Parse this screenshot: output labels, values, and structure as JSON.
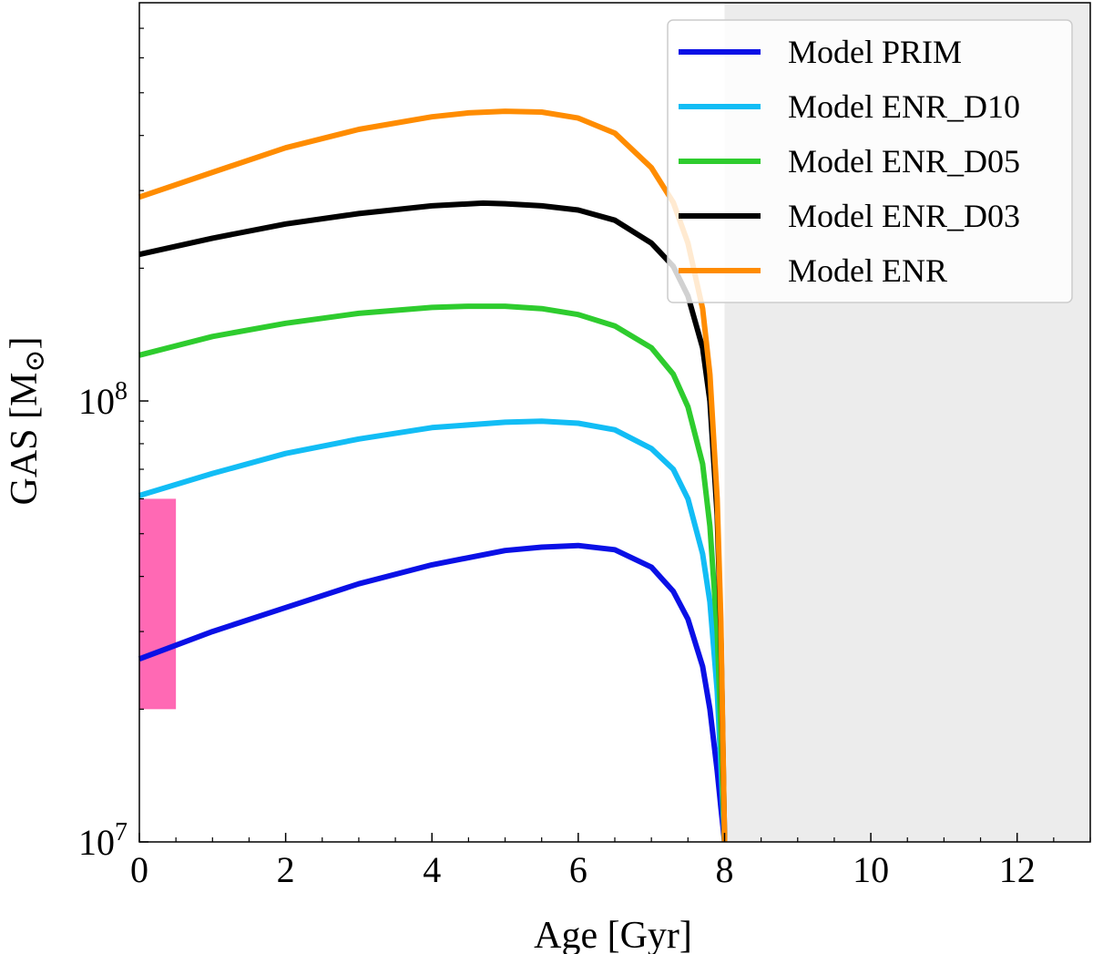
{
  "chart_data": {
    "type": "line",
    "title": "",
    "xlabel": "Age [Gyr]",
    "ylabel": "GAS [M",
    "ylabel_sub": "⊙",
    "ylabel_close": "]",
    "xlim": [
      0,
      13
    ],
    "ylim": [
      10000000,
      800000000
    ],
    "yscale": "log",
    "x_ticks": [
      0,
      2,
      4,
      6,
      8,
      10,
      12
    ],
    "x_tick_labels": [
      "0",
      "2",
      "4",
      "6",
      "8",
      "10",
      "12"
    ],
    "y_tick_labels": [
      {
        "value": 10000000,
        "base": "10",
        "exp": "7"
      },
      {
        "value": 100000000,
        "base": "10",
        "exp": "8"
      }
    ],
    "shaded_region": {
      "x_start": 8,
      "x_end": 13,
      "color": "#ececec"
    },
    "observed_box": {
      "x_start": 0,
      "x_end": 0.5,
      "y_low": 20000000,
      "y_high": 60000000,
      "color": "#ff69b4"
    },
    "legend_position": "upper right",
    "series": [
      {
        "name": "Model PRIM",
        "color": "#0a10e6",
        "x": [
          0,
          1,
          2,
          3,
          4,
          5,
          5.5,
          6,
          6.5,
          7,
          7.3,
          7.5,
          7.7,
          7.8,
          7.9,
          7.95,
          8.0
        ],
        "y": [
          26000000,
          30000000,
          34000000,
          38500000,
          42500000,
          45800000,
          46600000,
          47000000,
          46000000,
          42000000,
          37000000,
          32000000,
          25000000,
          20000000,
          14500000,
          12000000,
          10000000
        ]
      },
      {
        "name": "Model ENR_D10",
        "color": "#12bdf5",
        "x": [
          0,
          1,
          2,
          3,
          4,
          5,
          5.5,
          6,
          6.5,
          7,
          7.3,
          7.5,
          7.7,
          7.8,
          7.9,
          7.95,
          8.0
        ],
        "y": [
          61000000,
          68500000,
          76000000,
          82000000,
          87000000,
          89500000,
          90000000,
          89000000,
          86000000,
          78000000,
          70000000,
          60000000,
          45000000,
          35000000,
          22000000,
          15000000,
          10000000
        ]
      },
      {
        "name": "Model ENR_D05",
        "color": "#2ecc2e",
        "x": [
          0,
          1,
          2,
          3,
          4,
          4.5,
          5,
          5.5,
          6,
          6.5,
          7,
          7.3,
          7.5,
          7.7,
          7.8,
          7.9,
          7.95,
          8.0
        ],
        "y": [
          127000000,
          140000000,
          150000000,
          158000000,
          163000000,
          164000000,
          164000000,
          162000000,
          157000000,
          148000000,
          132000000,
          115000000,
          97000000,
          72000000,
          52000000,
          30000000,
          18000000,
          10000000
        ]
      },
      {
        "name": "Model ENR_D03",
        "color": "#000000",
        "x": [
          0,
          1,
          2,
          3,
          4,
          4.7,
          5,
          5.5,
          6,
          6.5,
          7,
          7.3,
          7.5,
          7.7,
          7.8,
          7.9,
          7.95,
          8.0
        ],
        "y": [
          215000000,
          234000000,
          252000000,
          266000000,
          277000000,
          281000000,
          280000000,
          277000000,
          271000000,
          257000000,
          228000000,
          202000000,
          173000000,
          132000000,
          100000000,
          55000000,
          30000000,
          10000000
        ]
      },
      {
        "name": "Model ENR",
        "color": "#ff8c00",
        "x": [
          0,
          1,
          2,
          3,
          4,
          4.5,
          5,
          5.5,
          6,
          6.5,
          7,
          7.3,
          7.5,
          7.7,
          7.8,
          7.9,
          7.95,
          8.0
        ],
        "y": [
          290000000,
          330000000,
          375000000,
          413000000,
          441000000,
          450000000,
          454000000,
          452000000,
          438000000,
          405000000,
          338000000,
          282000000,
          228000000,
          162000000,
          115000000,
          60000000,
          32000000,
          10000000
        ]
      }
    ]
  }
}
